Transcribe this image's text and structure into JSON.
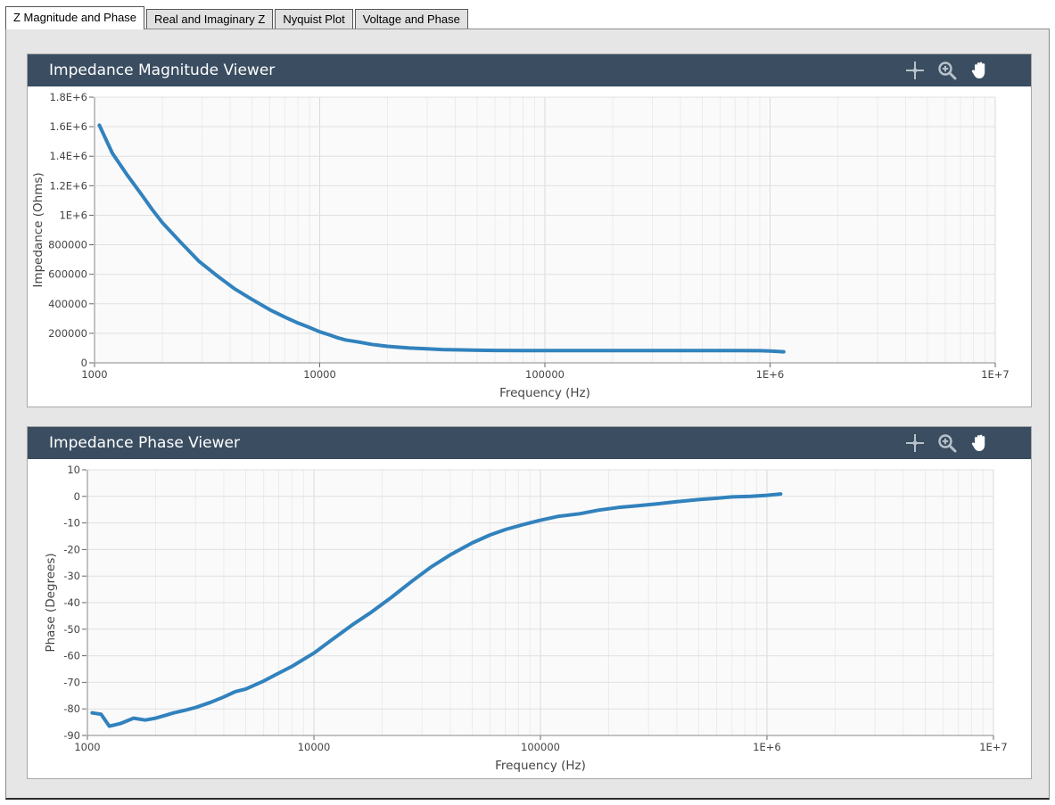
{
  "tabs": [
    {
      "label": "Z Magnitude and Phase",
      "active": true
    },
    {
      "label": "Real and Imaginary Z",
      "active": false
    },
    {
      "label": "Nyquist Plot",
      "active": false
    },
    {
      "label": "Voltage and Phase",
      "active": false
    }
  ],
  "toolbar_icons": [
    "crosshair-icon",
    "zoom-in-icon",
    "pan-hand-icon"
  ],
  "colors": {
    "header_bg": "#3a4d61",
    "series": "#3182bd",
    "plot_bg": "#fafafa",
    "frame_bg": "#e6e6e6"
  },
  "panels": {
    "magnitude": {
      "title": "Impedance Magnitude Viewer"
    },
    "phase": {
      "title": "Impedance Phase Viewer"
    }
  },
  "chart_data": [
    {
      "type": "line",
      "x_scale": "log",
      "xlabel": "Frequency (Hz)",
      "ylabel": "Impedance (Ohms)",
      "xlim": [
        1000,
        10000000
      ],
      "ylim": [
        0,
        1800000
      ],
      "x_ticks": [
        1000,
        10000,
        100000,
        1000000,
        10000000
      ],
      "x_tick_labels": [
        "1000",
        "10000",
        "100000",
        "1E+6",
        "1E+7"
      ],
      "y_ticks": [
        0,
        200000,
        400000,
        600000,
        800000,
        1000000,
        1200000,
        1400000,
        1600000,
        1800000
      ],
      "y_tick_labels": [
        "0",
        "200000",
        "400000",
        "600000",
        "800000",
        "1E+6",
        "1.2E+6",
        "1.4E+6",
        "1.6E+6",
        "1.8E+6"
      ],
      "grid": true,
      "series": [
        {
          "x": [
            1050,
            1200,
            1400,
            1600,
            1800,
            2000,
            2400,
            2900,
            3500,
            4200,
            5000,
            6000,
            7000,
            8000,
            9000,
            10000,
            11000,
            12000,
            13000,
            15000,
            17000,
            20000,
            25000,
            30000,
            35000,
            40000,
            50000,
            60000,
            80000,
            100000,
            150000,
            200000,
            300000,
            500000,
            700000,
            900000,
            1000000,
            1150000
          ],
          "y": [
            1610000,
            1420000,
            1270000,
            1150000,
            1040000,
            950000,
            820000,
            690000,
            590000,
            500000,
            430000,
            360000,
            310000,
            270000,
            240000,
            210000,
            190000,
            170000,
            155000,
            140000,
            125000,
            112000,
            100000,
            95000,
            90000,
            88000,
            85000,
            84000,
            83000,
            83000,
            83000,
            83000,
            83000,
            83000,
            83000,
            82000,
            80000,
            75000
          ]
        }
      ]
    },
    {
      "type": "line",
      "x_scale": "log",
      "xlabel": "Frequency (Hz)",
      "ylabel": "Phase (Degrees)",
      "xlim": [
        1000,
        10000000
      ],
      "ylim": [
        -90,
        10
      ],
      "x_ticks": [
        1000,
        10000,
        100000,
        1000000,
        10000000
      ],
      "x_tick_labels": [
        "1000",
        "10000",
        "100000",
        "1E+6",
        "1E+7"
      ],
      "y_ticks": [
        10,
        0,
        -10,
        -20,
        -30,
        -40,
        -50,
        -60,
        -70,
        -80,
        -90
      ],
      "y_tick_labels": [
        "10",
        "0",
        "-10",
        "-20",
        "-30",
        "-40",
        "-50",
        "-60",
        "-70",
        "-80",
        "-90"
      ],
      "grid": true,
      "series": [
        {
          "x": [
            1050,
            1150,
            1250,
            1400,
            1600,
            1800,
            2000,
            2200,
            2400,
            2700,
            3000,
            3500,
            4000,
            4500,
            5000,
            6000,
            7000,
            8000,
            10000,
            12000,
            15000,
            18000,
            22000,
            27000,
            33000,
            40000,
            50000,
            60000,
            70000,
            85000,
            100000,
            120000,
            150000,
            180000,
            220000,
            270000,
            330000,
            400000,
            500000,
            600000,
            700000,
            850000,
            1000000,
            1150000
          ],
          "y": [
            -81.5,
            -82,
            -86.5,
            -85.5,
            -83.5,
            -84.2,
            -83.5,
            -82.5,
            -81.5,
            -80.5,
            -79.5,
            -77.5,
            -75.5,
            -73.5,
            -72.5,
            -69.5,
            -66.5,
            -64,
            -59,
            -54,
            -48,
            -43.5,
            -38,
            -32,
            -26.5,
            -22,
            -17.5,
            -14.5,
            -12.5,
            -10.5,
            -9,
            -7.5,
            -6.5,
            -5.2,
            -4.2,
            -3.5,
            -2.8,
            -2,
            -1.2,
            -0.7,
            -0.2,
            0,
            0.4,
            0.9
          ]
        }
      ]
    }
  ]
}
